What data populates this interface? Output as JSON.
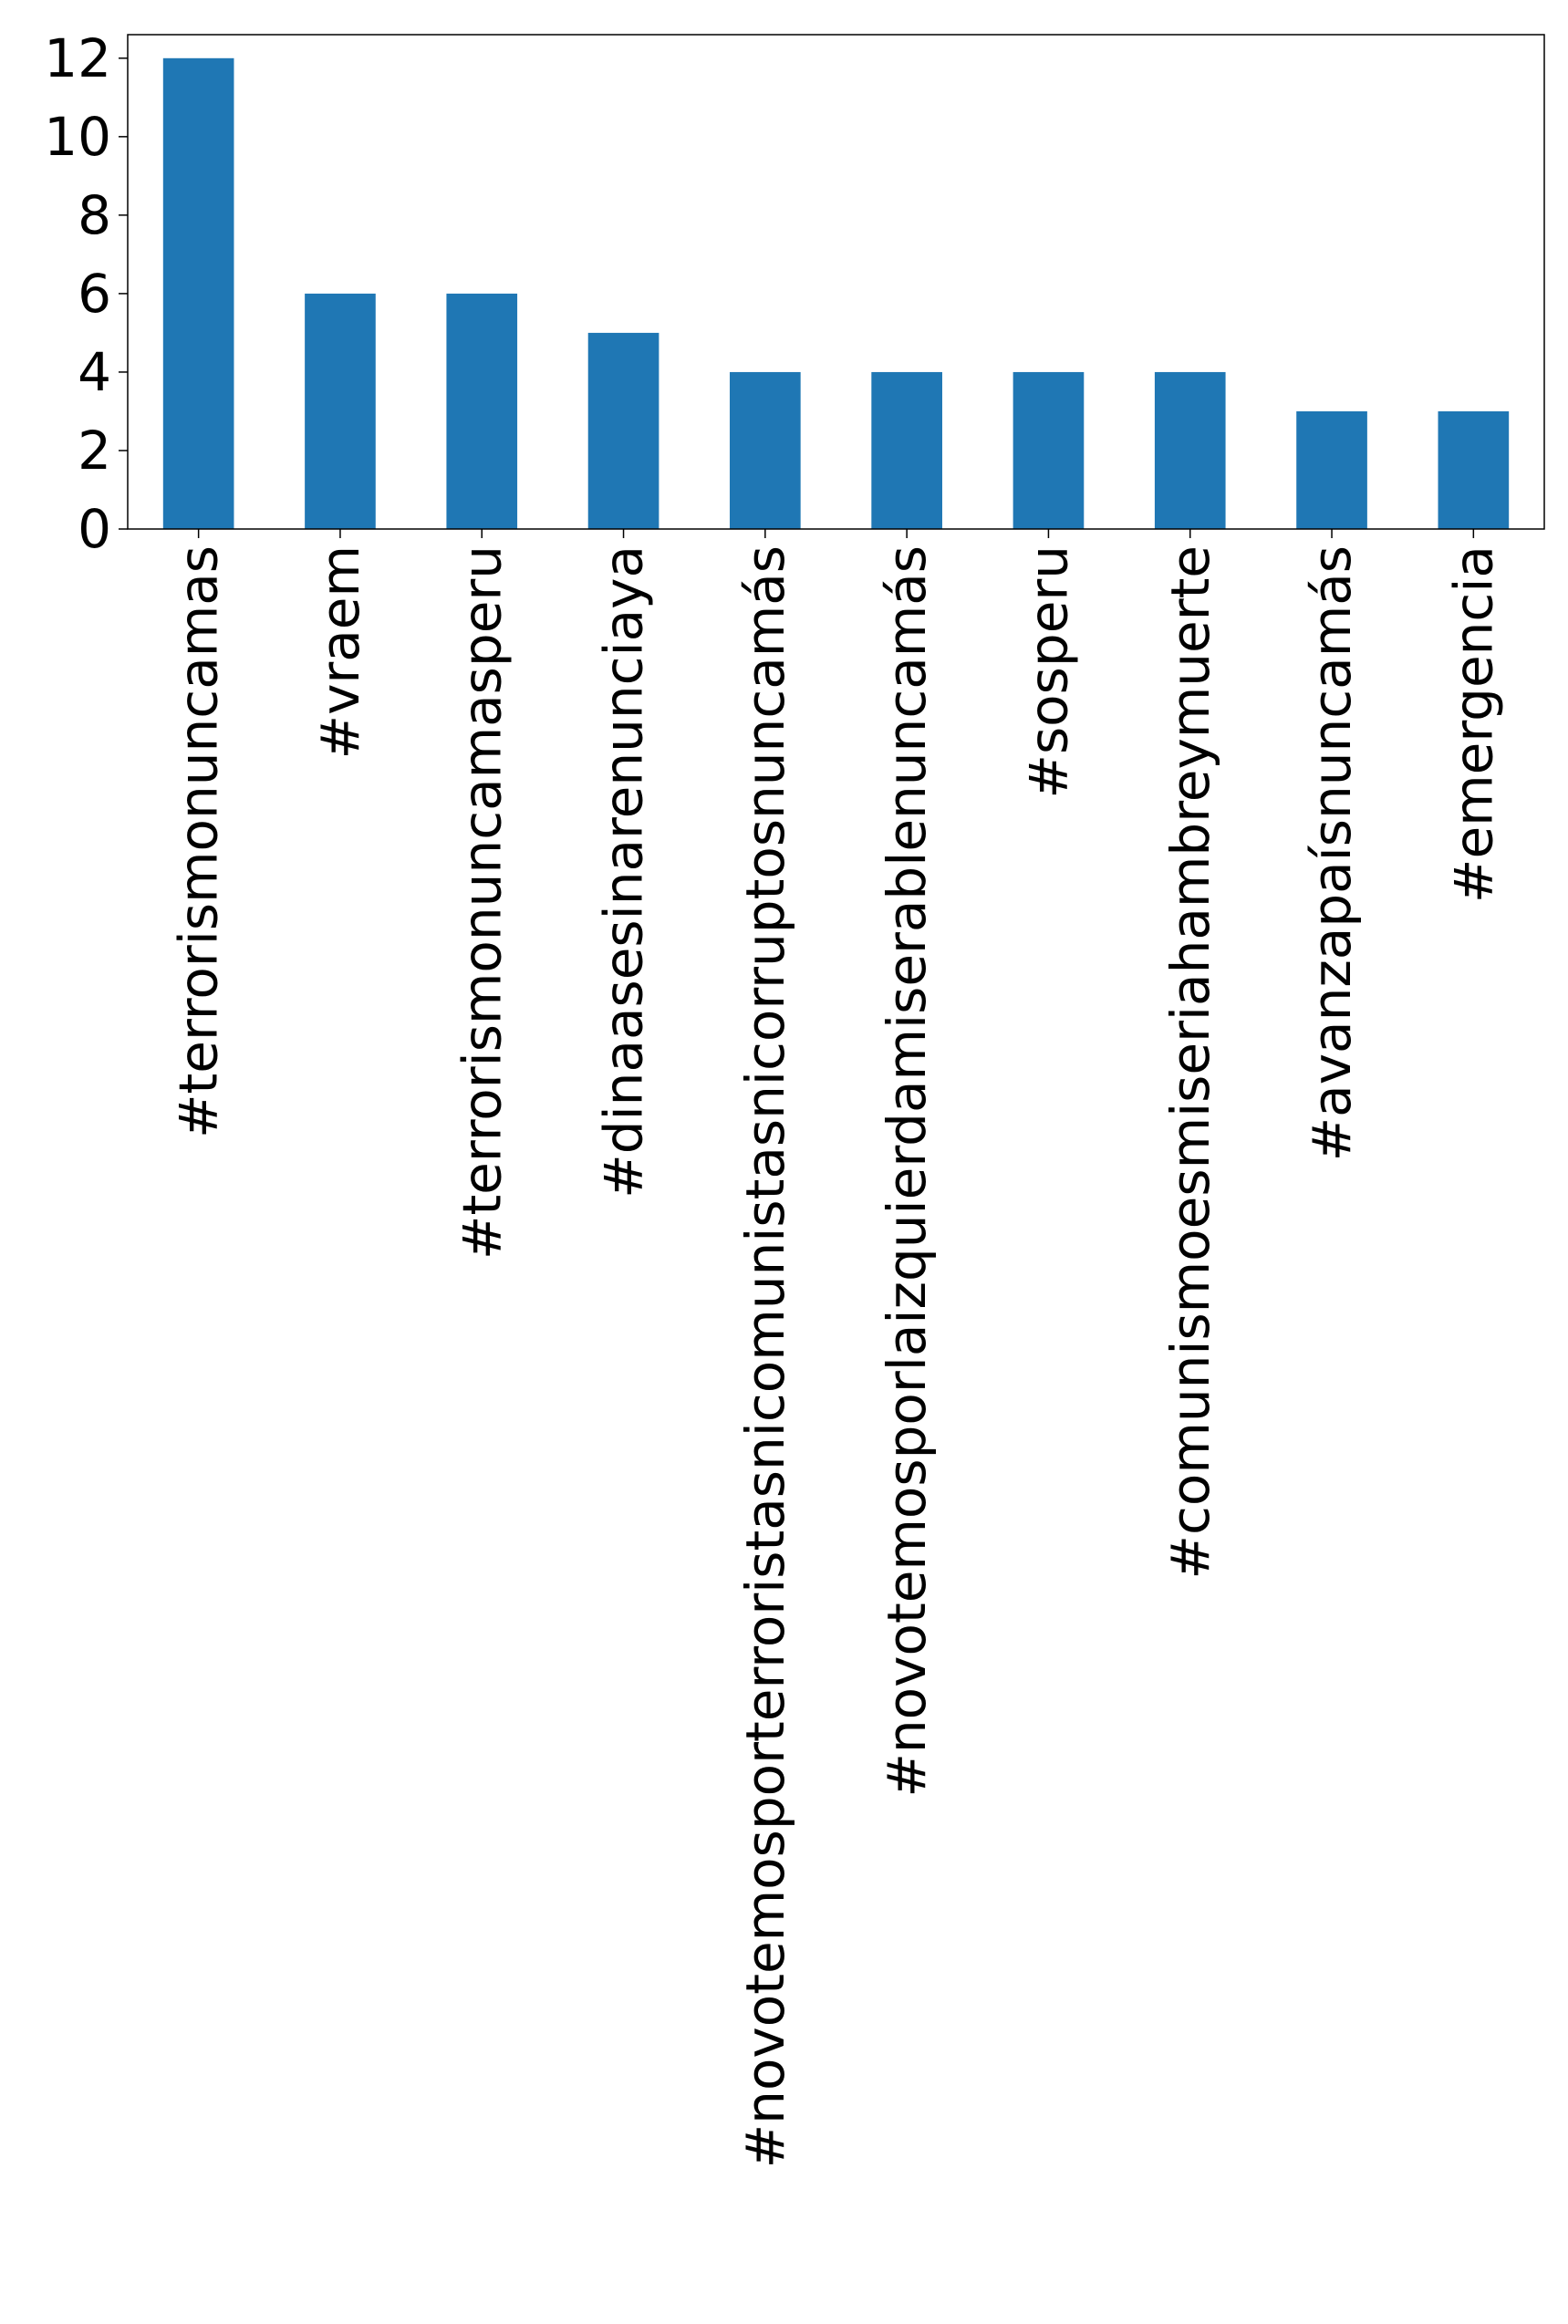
{
  "chart_data": {
    "type": "bar",
    "title": "",
    "xlabel": "",
    "ylabel": "",
    "categories": [
      "#terrorismonuncamas",
      "#vraem",
      "#terrorismonuncamasperu",
      "#dinaasesinarenunciaya",
      "#novotemosporterroristasnicomunistasnicorruptosnuncamás",
      "#novotemosporlaizquierdamiserablenuncamás",
      "#sosperu",
      "#comunismoesmiseriahambreymuerte",
      "#avanzapaísnuncamás",
      "#emergencia"
    ],
    "values": [
      12,
      6,
      6,
      5,
      4,
      4,
      4,
      4,
      3,
      3
    ],
    "ylim": [
      0,
      12.6
    ],
    "yticks": [
      0,
      2,
      4,
      6,
      8,
      10,
      12
    ],
    "grid": false,
    "legend": "none",
    "bar_color": "#1f77b4"
  }
}
